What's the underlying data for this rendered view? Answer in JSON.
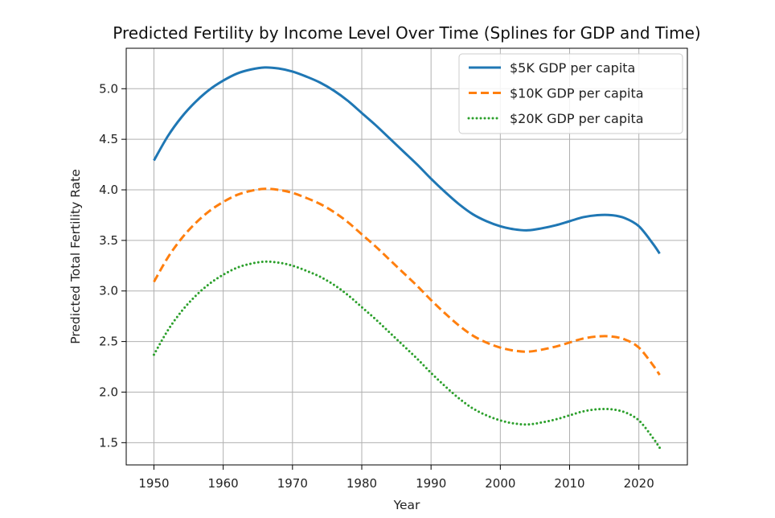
{
  "chart_data": {
    "type": "line",
    "title": "Predicted Fertility by Income Level Over Time (Splines for GDP and Time)",
    "xlabel": "Year",
    "ylabel": "Predicted Total Fertility Rate",
    "xlim": [
      1946,
      2027
    ],
    "ylim": [
      1.28,
      5.4
    ],
    "xticks": [
      1950,
      1960,
      1970,
      1980,
      1990,
      2000,
      2010,
      2020
    ],
    "yticks": [
      1.5,
      2.0,
      2.5,
      3.0,
      3.5,
      4.0,
      4.5,
      5.0
    ],
    "ytick_labels": [
      "1.5",
      "2.0",
      "2.5",
      "3.0",
      "3.5",
      "4.0",
      "4.5",
      "5.0"
    ],
    "grid": true,
    "legend_position": "top-right",
    "x": [
      1950,
      1952,
      1954,
      1956,
      1958,
      1960,
      1962,
      1964,
      1966,
      1968,
      1970,
      1972,
      1974,
      1976,
      1978,
      1980,
      1982,
      1984,
      1986,
      1988,
      1990,
      1992,
      1994,
      1996,
      1998,
      2000,
      2002,
      2004,
      2006,
      2008,
      2010,
      2012,
      2014,
      2016,
      2018,
      2020,
      2022,
      2023
    ],
    "series": [
      {
        "name": "$5K GDP per capita",
        "color": "#1f77b4",
        "style": "solid",
        "values": [
          4.29,
          4.53,
          4.72,
          4.87,
          4.99,
          5.08,
          5.15,
          5.19,
          5.21,
          5.2,
          5.17,
          5.12,
          5.06,
          4.98,
          4.88,
          4.76,
          4.64,
          4.51,
          4.38,
          4.25,
          4.11,
          3.98,
          3.86,
          3.76,
          3.69,
          3.64,
          3.61,
          3.6,
          3.62,
          3.65,
          3.69,
          3.73,
          3.75,
          3.75,
          3.72,
          3.64,
          3.47,
          3.37
        ]
      },
      {
        "name": "$10K GDP per capita",
        "color": "#ff7f0e",
        "style": "dashed",
        "values": [
          3.09,
          3.33,
          3.52,
          3.67,
          3.79,
          3.88,
          3.95,
          3.99,
          4.01,
          4.0,
          3.97,
          3.92,
          3.86,
          3.78,
          3.68,
          3.56,
          3.44,
          3.31,
          3.18,
          3.05,
          2.91,
          2.78,
          2.66,
          2.56,
          2.49,
          2.44,
          2.41,
          2.4,
          2.42,
          2.45,
          2.49,
          2.53,
          2.55,
          2.55,
          2.52,
          2.44,
          2.27,
          2.17
        ]
      },
      {
        "name": "$20K GDP per capita",
        "color": "#2ca02c",
        "style": "dotted",
        "values": [
          2.37,
          2.61,
          2.8,
          2.95,
          3.07,
          3.16,
          3.23,
          3.27,
          3.29,
          3.28,
          3.25,
          3.2,
          3.14,
          3.06,
          2.96,
          2.84,
          2.72,
          2.59,
          2.46,
          2.33,
          2.19,
          2.06,
          1.94,
          1.84,
          1.77,
          1.72,
          1.69,
          1.68,
          1.7,
          1.73,
          1.77,
          1.81,
          1.83,
          1.83,
          1.8,
          1.72,
          1.55,
          1.45
        ]
      }
    ]
  }
}
